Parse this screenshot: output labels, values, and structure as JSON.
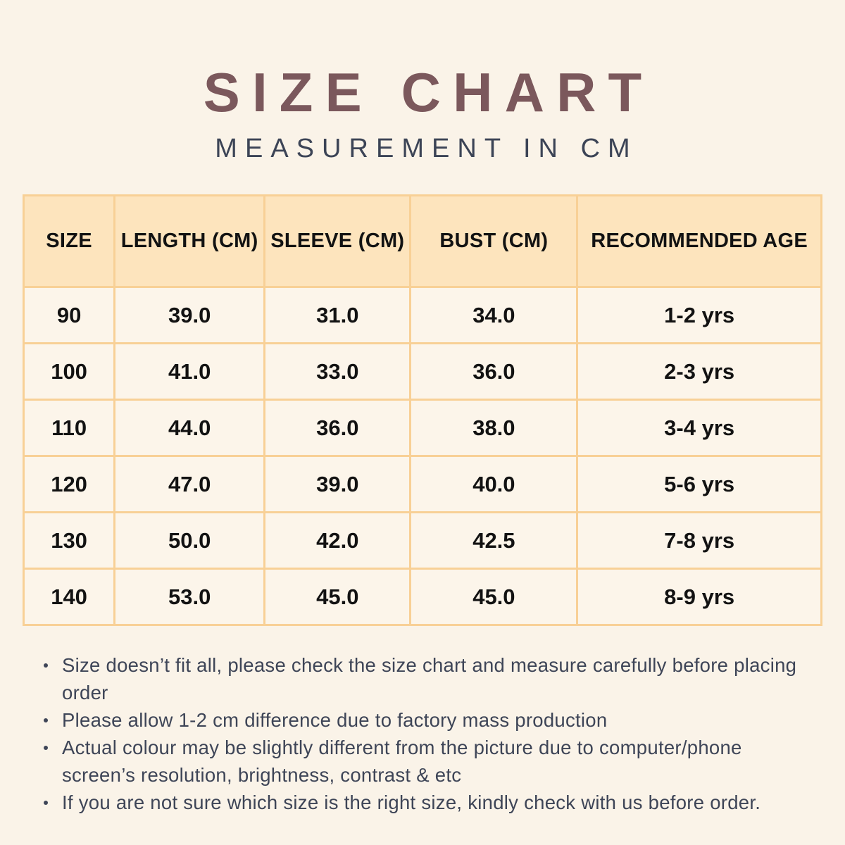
{
  "header": {
    "title": "SIZE CHART",
    "subtitle": "MEASUREMENT IN CM"
  },
  "table": {
    "columns": [
      "SIZE",
      "LENGTH (CM)",
      "SLEEVE (CM)",
      "BUST (CM)",
      "RECOMMENDED AGE"
    ],
    "rows": [
      [
        "90",
        "39.0",
        "31.0",
        "34.0",
        "1-2 yrs"
      ],
      [
        "100",
        "41.0",
        "33.0",
        "36.0",
        "2-3 yrs"
      ],
      [
        "110",
        "44.0",
        "36.0",
        "38.0",
        "3-4 yrs"
      ],
      [
        "120",
        "47.0",
        "39.0",
        "40.0",
        "5-6 yrs"
      ],
      [
        "130",
        "50.0",
        "42.0",
        "42.5",
        "7-8 yrs"
      ],
      [
        "140",
        "53.0",
        "45.0",
        "45.0",
        "8-9 yrs"
      ]
    ]
  },
  "notes": [
    "Size doesn’t fit all, please check the size chart and measure carefully before placing order",
    "Please allow 1-2 cm difference due to factory mass production",
    "Actual colour may be slightly different from the picture due to computer/phone screen’s resolution, brightness, contrast & etc",
    "If you are not sure which size is the right size, kindly check with us before order."
  ],
  "colors": {
    "page_background": "#faf3e8",
    "title_text": "#7b585c",
    "subtitle_text": "#3c4456",
    "table_border": "#f8d096",
    "table_header_background": "#fde4bd",
    "table_cell_background": "#fcf5ea",
    "table_text": "#121212",
    "notes_text": "#3e4557"
  }
}
